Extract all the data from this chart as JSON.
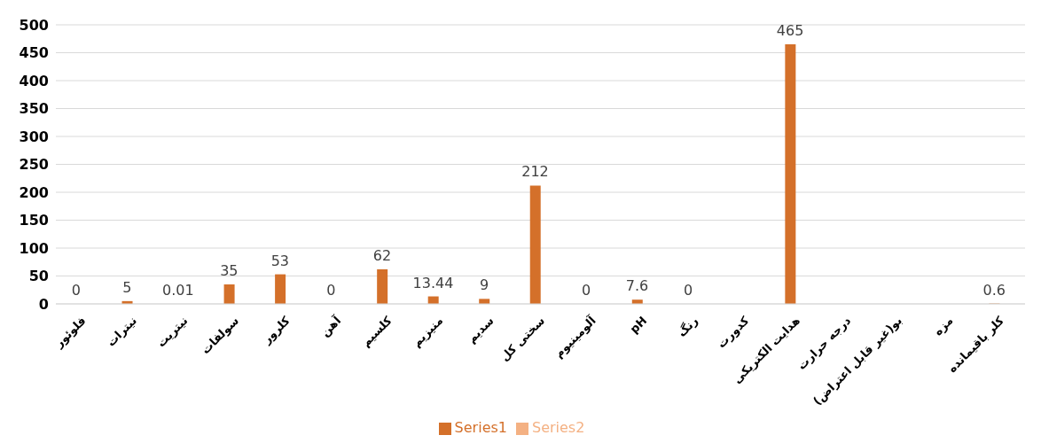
{
  "chart_data": {
    "type": "bar",
    "categories": [
      "فلوئور",
      "نیترات",
      "نیتریت",
      "سولفات",
      "کلرور",
      "آهن",
      "کلسیم",
      "منیزیم",
      "سدیم",
      "سختی کل",
      "آلومینیوم",
      "pH",
      "رنگ",
      "کدورت",
      "هدایت الکتریکی",
      "درجه حرارت",
      "بو(غیر قابل اعتراض)",
      "مزه",
      "کلر باقیمانده"
    ],
    "series": [
      {
        "name": "Series1",
        "color": "#d4702a",
        "values": [
          0,
          5,
          0.01,
          35,
          53,
          0,
          62,
          13.44,
          9,
          212,
          0,
          7.6,
          0,
          null,
          465,
          null,
          null,
          null,
          0.6
        ]
      },
      {
        "name": "Series2",
        "color": "#f4b183",
        "values": [
          null,
          null,
          null,
          null,
          null,
          null,
          null,
          null,
          null,
          null,
          null,
          null,
          null,
          null,
          null,
          null,
          null,
          null,
          null
        ]
      }
    ],
    "ylim": [
      0,
      500
    ],
    "yticks": [
      0,
      50,
      100,
      150,
      200,
      250,
      300,
      350,
      400,
      450,
      500
    ],
    "grid": "y",
    "legend": "bottom",
    "data_labels": true
  }
}
